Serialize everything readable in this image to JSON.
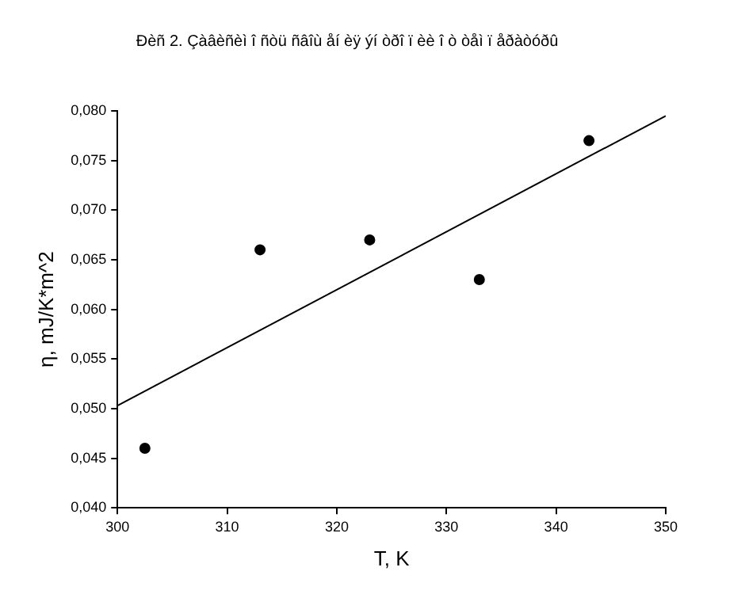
{
  "chart_data": {
    "type": "scatter",
    "title": "Đèñ 2. Çàâèñèì î ñòü ñâîù åí èÿ ýí òðî ï èè î ò òåì ï åðàòóðû",
    "xlabel": "T, K",
    "ylabel": "η, mJ/K*m^2",
    "x": [
      302.5,
      313,
      323,
      333,
      343
    ],
    "series": [
      {
        "color": "#000000",
        "values": [
          0.046,
          0.066,
          0.067,
          0.063,
          0.077
        ]
      },
      {
        "type": "line",
        "color": "#000000",
        "x": [
          300,
          350
        ],
        "values": [
          0.0503,
          0.0795
        ],
        "marker": "none"
      }
    ],
    "marker": "circle",
    "grid": false,
    "legend": false,
    "xlim": [
      300,
      350
    ],
    "xticks": [
      300,
      310,
      320,
      330,
      340,
      350
    ],
    "ylim": [
      0.04,
      0.08
    ],
    "yticks": [
      {
        "value": 0.04,
        "label": "0,040"
      },
      {
        "value": 0.045,
        "label": "0,045"
      },
      {
        "value": 0.05,
        "label": "0,050"
      },
      {
        "value": 0.055,
        "label": "0,055"
      },
      {
        "value": 0.06,
        "label": "0,060"
      },
      {
        "value": 0.065,
        "label": "0,065"
      },
      {
        "value": 0.07,
        "label": "0,070"
      },
      {
        "value": 0.075,
        "label": "0,075"
      },
      {
        "value": 0.08,
        "label": "0,080"
      }
    ]
  }
}
